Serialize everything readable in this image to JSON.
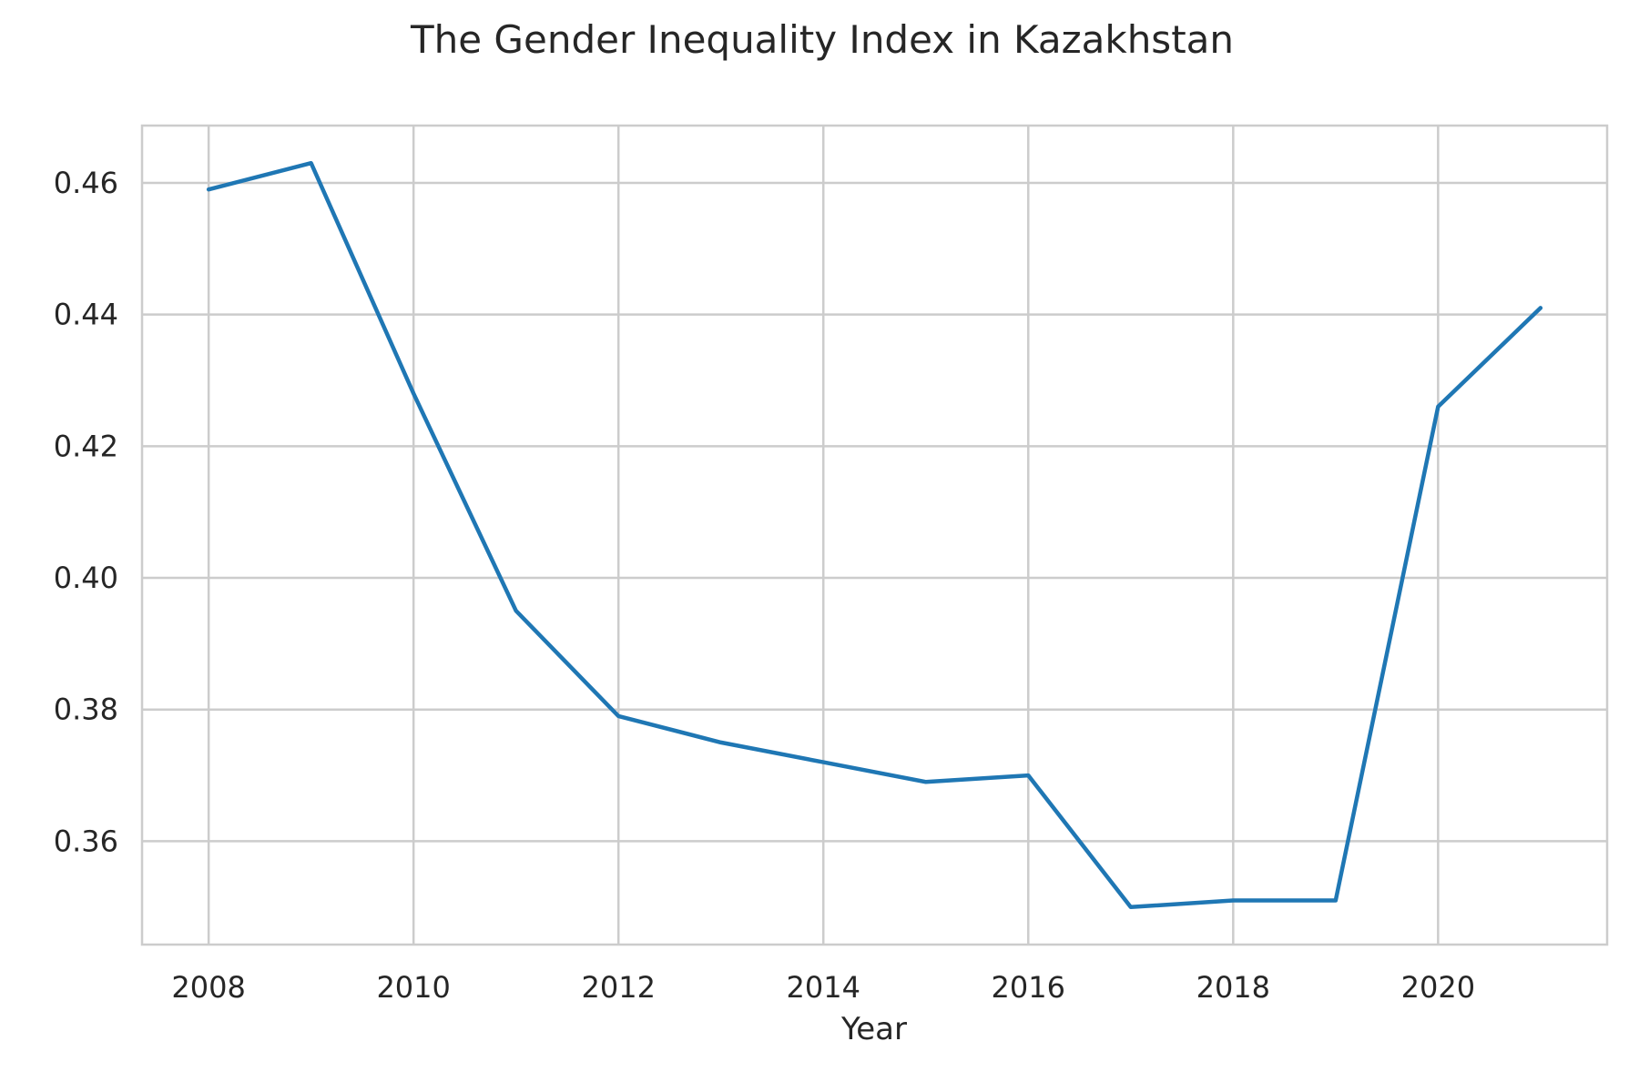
{
  "chart_data": {
    "type": "line",
    "title": "The Gender Inequality Index in Kazakhstan",
    "xlabel": "Year",
    "ylabel": "",
    "x": [
      2008,
      2009,
      2010,
      2011,
      2012,
      2013,
      2014,
      2015,
      2016,
      2017,
      2018,
      2019,
      2020,
      2021
    ],
    "series": [
      {
        "values": [
          0.459,
          0.463,
          0.428,
          0.395,
          0.379,
          0.375,
          0.372,
          0.369,
          0.37,
          0.35,
          0.351,
          0.351,
          0.426,
          0.441
        ],
        "color": "#1f77b4"
      }
    ],
    "xlim": [
      2007.35,
      2021.65
    ],
    "ylim": [
      0.3443,
      0.4687
    ],
    "xticks": [
      2008,
      2010,
      2012,
      2014,
      2016,
      2018,
      2020
    ],
    "xtick_labels": [
      "2008",
      "2010",
      "2012",
      "2014",
      "2016",
      "2018",
      "2020"
    ],
    "yticks": [
      0.36,
      0.38,
      0.4,
      0.42,
      0.44,
      0.46
    ],
    "ytick_labels": [
      "0.36",
      "0.38",
      "0.40",
      "0.42",
      "0.44",
      "0.46"
    ],
    "grid": true,
    "legend": "none"
  }
}
